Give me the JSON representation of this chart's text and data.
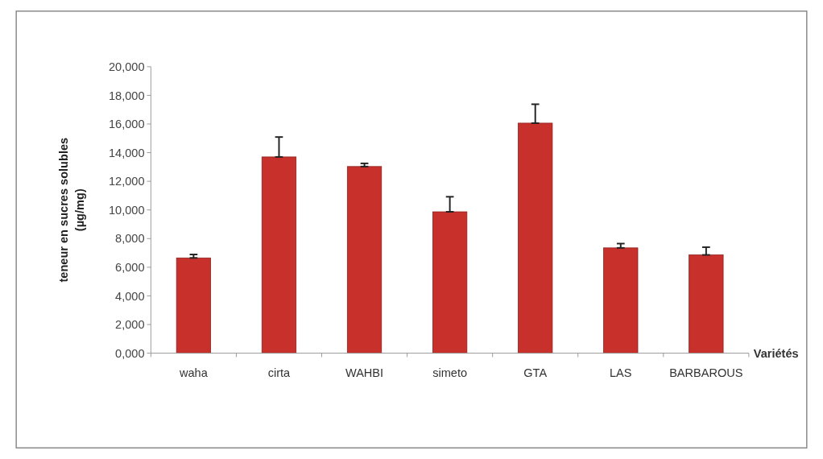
{
  "chart_data": {
    "type": "bar",
    "xlabel": "Variétés",
    "ylabel": "teneur en sucres solubles\n(µg/mg)",
    "categories": [
      "waha",
      "cirta",
      "WAHBI",
      "simeto",
      "GTA",
      "LAS",
      "BARBAROUS"
    ],
    "values": [
      6650,
      13700,
      13030,
      9870,
      16060,
      7350,
      6860
    ],
    "errors": [
      [
        6650,
        6890
      ],
      [
        13700,
        15090
      ],
      [
        13030,
        13250
      ],
      [
        9870,
        10920
      ],
      [
        16060,
        17380
      ],
      [
        7350,
        7650
      ],
      [
        6860,
        7400
      ]
    ],
    "color": "#c8302c",
    "ylim": [
      0,
      20000
    ],
    "yticks": [
      {
        "value": 0,
        "label": "0,000"
      },
      {
        "value": 2000,
        "label": "2,000"
      },
      {
        "value": 4000,
        "label": "4,000"
      },
      {
        "value": 6000,
        "label": "6,000"
      },
      {
        "value": 8000,
        "label": "8,000"
      },
      {
        "value": 10000,
        "label": "10,000"
      },
      {
        "value": 12000,
        "label": "12,000"
      },
      {
        "value": 14000,
        "label": "14,000"
      },
      {
        "value": 16000,
        "label": "16,000"
      },
      {
        "value": 18000,
        "label": "18,000"
      },
      {
        "value": 20000,
        "label": "20,000"
      }
    ]
  }
}
